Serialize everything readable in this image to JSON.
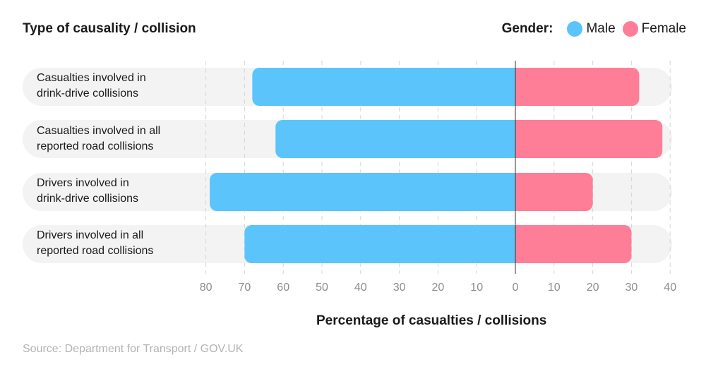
{
  "chart_data": {
    "type": "bar",
    "orientation": "horizontal-diverging",
    "y_title": "Type of causality / collision",
    "x_title": "Percentage of casualties / collisions",
    "legend_title": "Gender:",
    "legend_position": "top-right",
    "categories": [
      [
        "Casualties involved in",
        "drink-drive collisions"
      ],
      [
        "Casualties involved in all",
        "reported road collisions"
      ],
      [
        "Drivers involved in",
        "drink-drive collisions"
      ],
      [
        "Drivers involved in all",
        "reported road collisions"
      ]
    ],
    "series": [
      {
        "name": "Male",
        "color": "#5bc5fb",
        "values": [
          68,
          62,
          79,
          70
        ]
      },
      {
        "name": "Female",
        "color": "#ff7e97",
        "values": [
          32,
          38,
          20,
          30
        ]
      }
    ],
    "xlim_male": [
      80,
      0
    ],
    "xlim_female": [
      0,
      40
    ],
    "x_ticks_male": [
      80,
      70,
      60,
      50,
      40,
      30,
      20,
      10
    ],
    "x_ticks_female": [
      0,
      10,
      20,
      30,
      40
    ],
    "grid": true
  },
  "source": "Source: Department for Transport / GOV.UK"
}
